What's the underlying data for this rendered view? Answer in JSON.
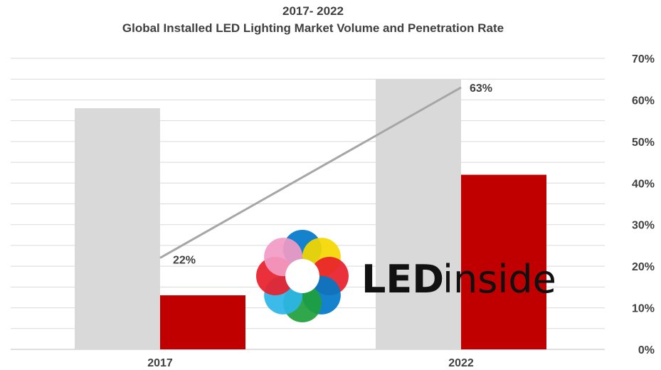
{
  "chart_data": {
    "type": "bar",
    "title_line_1": "2017- 2022",
    "title_line_2": "Global Installed LED Lighting Market Volume and Penetration Rate",
    "categories": [
      "2017",
      "2022"
    ],
    "series": [
      {
        "kind": "bar",
        "values": [
          58,
          65
        ],
        "color": "#d9d9d9"
      },
      {
        "kind": "bar",
        "values": [
          13,
          42
        ],
        "color": "#c00000"
      },
      {
        "kind": "line",
        "values": [
          22,
          63
        ],
        "labels": [
          "22%",
          "63%"
        ],
        "color": "#a6a6a6"
      }
    ],
    "y_axis_right": {
      "ylim": [
        0,
        70
      ],
      "ticks": [
        0,
        10,
        20,
        30,
        40,
        50,
        60,
        70
      ],
      "tick_labels": [
        "0%",
        "10%",
        "20%",
        "30%",
        "40%",
        "50%",
        "60%",
        "70%"
      ]
    },
    "grid": true,
    "legend": "none"
  },
  "watermark": {
    "text_led": "LED",
    "text_inside": "inside",
    "colors": [
      "#e8202a",
      "#0077c8",
      "#1fa03c",
      "#f5d800",
      "#f29ac4",
      "#2bb5e8"
    ]
  }
}
